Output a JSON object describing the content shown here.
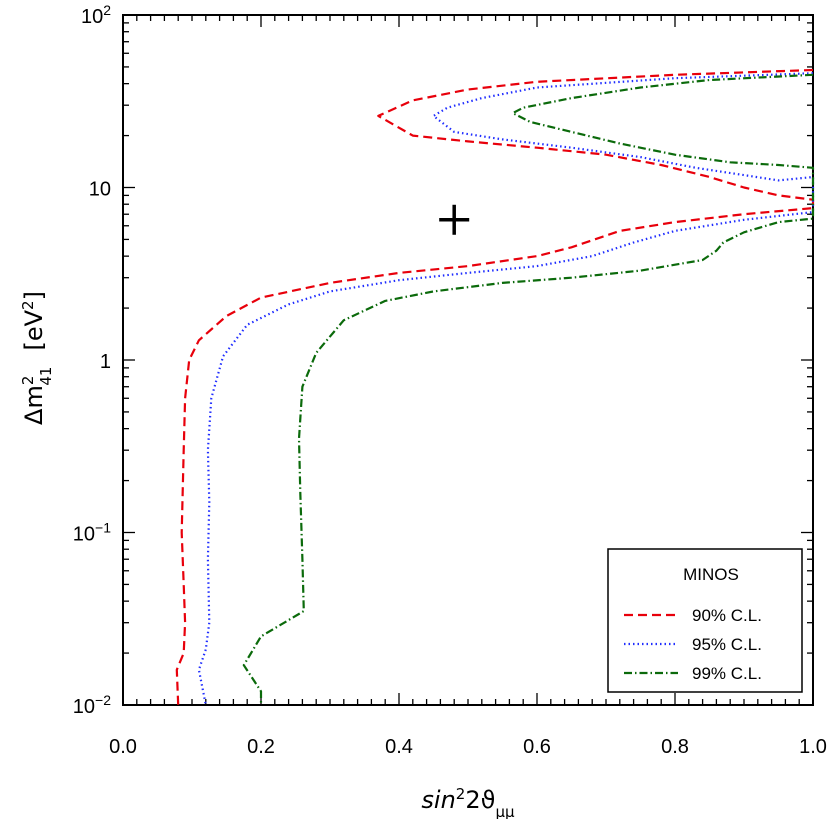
{
  "chart_data": {
    "type": "line",
    "xlabel": {
      "main": "sin",
      "sup": "2",
      "rest": "2ϑ",
      "sub": "μμ"
    },
    "ylabel": {
      "main": "Δm",
      "sup": "2",
      "sub": "41",
      "unit_open": "[eV",
      "unit_sup": "2",
      "unit_close": "]"
    },
    "xlim": [
      0.0,
      1.0
    ],
    "ylim": [
      0.01,
      100
    ],
    "yscale": "log",
    "x_ticks": [
      {
        "v": 0.0,
        "label": "0.0"
      },
      {
        "v": 0.2,
        "label": "0.2"
      },
      {
        "v": 0.4,
        "label": "0.4"
      },
      {
        "v": 0.6,
        "label": "0.6"
      },
      {
        "v": 0.8,
        "label": "0.8"
      },
      {
        "v": 1.0,
        "label": "1.0"
      }
    ],
    "y_ticks": [
      {
        "v": 100,
        "base": "10",
        "exp": "2"
      },
      {
        "v": 10,
        "base": "10",
        "exp": ""
      },
      {
        "v": 1,
        "base": "1",
        "exp": ""
      },
      {
        "v": 0.1,
        "base": "10",
        "exp": "−1"
      },
      {
        "v": 0.01,
        "base": "10",
        "exp": "−2"
      }
    ],
    "legend": {
      "title": "MINOS",
      "position": "bottom-right"
    },
    "best_fit": {
      "x": 0.48,
      "y": 6.5,
      "marker": "+"
    },
    "series": [
      {
        "name": "90% C.L.",
        "color": "#e8000b",
        "dash": "9,5",
        "upper_branch": [
          [
            1.0,
            48
          ],
          [
            0.8,
            45
          ],
          [
            0.6,
            41
          ],
          [
            0.5,
            37
          ],
          [
            0.42,
            32
          ],
          [
            0.37,
            26
          ],
          [
            0.42,
            20
          ],
          [
            0.5,
            18.5
          ],
          [
            0.6,
            17
          ],
          [
            0.7,
            15.5
          ],
          [
            0.78,
            13.5
          ],
          [
            0.85,
            11.5
          ],
          [
            0.9,
            10
          ],
          [
            0.95,
            9
          ],
          [
            1.0,
            8.5
          ]
        ],
        "lower_branch": [
          [
            1.0,
            7.6
          ],
          [
            0.9,
            7
          ],
          [
            0.8,
            6.3
          ],
          [
            0.72,
            5.6
          ],
          [
            0.65,
            4.5
          ],
          [
            0.6,
            4
          ],
          [
            0.5,
            3.5
          ],
          [
            0.4,
            3.2
          ],
          [
            0.3,
            2.8
          ],
          [
            0.2,
            2.3
          ],
          [
            0.15,
            1.8
          ],
          [
            0.11,
            1.3
          ],
          [
            0.096,
            1
          ],
          [
            0.09,
            0.6
          ],
          [
            0.088,
            0.3
          ],
          [
            0.085,
            0.1
          ],
          [
            0.088,
            0.05
          ],
          [
            0.09,
            0.03
          ],
          [
            0.088,
            0.02
          ],
          [
            0.078,
            0.016
          ],
          [
            0.08,
            0.01
          ]
        ]
      },
      {
        "name": "95% C.L.",
        "color": "#1f2dff",
        "dash": "1.5,3",
        "upper_branch": [
          [
            1.0,
            46
          ],
          [
            0.8,
            43
          ],
          [
            0.6,
            38
          ],
          [
            0.52,
            33
          ],
          [
            0.47,
            29
          ],
          [
            0.45,
            26
          ],
          [
            0.48,
            21
          ],
          [
            0.55,
            19
          ],
          [
            0.65,
            17
          ],
          [
            0.75,
            15
          ],
          [
            0.83,
            13
          ],
          [
            0.9,
            11.8
          ],
          [
            0.95,
            11
          ],
          [
            1.0,
            11.5
          ]
        ],
        "lower_branch": [
          [
            1.0,
            7.2
          ],
          [
            0.9,
            6.5
          ],
          [
            0.8,
            5.6
          ],
          [
            0.74,
            4.8
          ],
          [
            0.68,
            4
          ],
          [
            0.6,
            3.5
          ],
          [
            0.5,
            3.2
          ],
          [
            0.4,
            2.9
          ],
          [
            0.3,
            2.5
          ],
          [
            0.24,
            2.1
          ],
          [
            0.18,
            1.6
          ],
          [
            0.145,
            1.05
          ],
          [
            0.128,
            0.6
          ],
          [
            0.123,
            0.3
          ],
          [
            0.125,
            0.15
          ],
          [
            0.123,
            0.07
          ],
          [
            0.125,
            0.03
          ],
          [
            0.12,
            0.021
          ],
          [
            0.11,
            0.016
          ],
          [
            0.12,
            0.01
          ]
        ]
      },
      {
        "name": "99% C.L.",
        "color": "#0b6a0b",
        "dash": "8,3,1.5,3",
        "upper_branch": [
          [
            1.0,
            45
          ],
          [
            0.85,
            42
          ],
          [
            0.75,
            38
          ],
          [
            0.65,
            33
          ],
          [
            0.58,
            29
          ],
          [
            0.565,
            27
          ],
          [
            0.59,
            24
          ],
          [
            0.65,
            21
          ],
          [
            0.72,
            18
          ],
          [
            0.8,
            15.5
          ],
          [
            0.88,
            14
          ],
          [
            0.95,
            13.5
          ],
          [
            1.0,
            13
          ]
        ],
        "lower_branch": [
          [
            1.0,
            6.6
          ],
          [
            0.95,
            6.3
          ],
          [
            0.9,
            5.5
          ],
          [
            0.87,
            4.8
          ],
          [
            0.86,
            4.3
          ],
          [
            0.84,
            3.8
          ],
          [
            0.75,
            3.3
          ],
          [
            0.65,
            3
          ],
          [
            0.55,
            2.8
          ],
          [
            0.45,
            2.5
          ],
          [
            0.38,
            2.2
          ],
          [
            0.32,
            1.7
          ],
          [
            0.28,
            1.1
          ],
          [
            0.26,
            0.7
          ],
          [
            0.255,
            0.35
          ],
          [
            0.257,
            0.17
          ],
          [
            0.26,
            0.07
          ],
          [
            0.262,
            0.035
          ],
          [
            0.2,
            0.025
          ],
          [
            0.175,
            0.017
          ],
          [
            0.2,
            0.012
          ],
          [
            0.2,
            0.01
          ]
        ]
      }
    ]
  }
}
